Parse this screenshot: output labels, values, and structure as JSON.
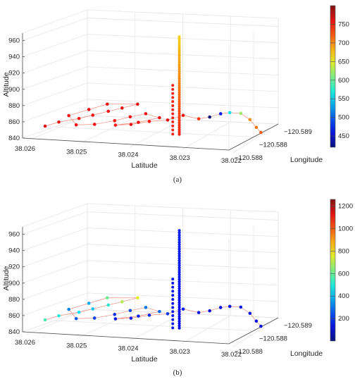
{
  "chart_data": [
    {
      "type": "scatter3d",
      "caption": "(a)",
      "xlabel": "Latitude",
      "ylabel": "Longitude",
      "zlabel": "Altitude",
      "x_ticks": [
        "38.026",
        "38.025",
        "38.024",
        "38.023",
        "38.022"
      ],
      "y_ticks": [
        "−120.589",
        "−120.588",
        "−120.588"
      ],
      "z_ticks": [
        "840",
        "860",
        "880",
        "900",
        "920",
        "940",
        "960"
      ],
      "colorbar_ticks": [
        "450",
        "500",
        "550",
        "600",
        "650",
        "700",
        "750"
      ],
      "colorbar_range": [
        420,
        800
      ],
      "zlim": [
        840,
        970
      ],
      "climb_column": {
        "lat": 38.023,
        "z_min": 848,
        "z_max": 968,
        "color_value_bottom": 745,
        "color_value_top": 670
      },
      "points": [
        {
          "lat": 38.0256,
          "lon_f": 0.0,
          "alt": 856,
          "c": 760
        },
        {
          "lat": 38.0253,
          "lon_f": 0.0,
          "alt": 862,
          "c": 760
        },
        {
          "lat": 38.0249,
          "lon_f": 0.05,
          "alt": 867,
          "c": 755
        },
        {
          "lat": 38.0246,
          "lon_f": 0.05,
          "alt": 872,
          "c": 755
        },
        {
          "lat": 38.0243,
          "lon_f": 0.1,
          "alt": 877,
          "c": 755
        },
        {
          "lat": 38.024,
          "lon_f": 0.1,
          "alt": 882,
          "c": 760
        },
        {
          "lat": 38.0237,
          "lon_f": 0.15,
          "alt": 887,
          "c": 760
        },
        {
          "lat": 38.0244,
          "lon_f": 0.2,
          "alt": 884,
          "c": 755
        },
        {
          "lat": 38.0248,
          "lon_f": 0.2,
          "alt": 876,
          "c": 755
        },
        {
          "lat": 38.0252,
          "lon_f": 0.15,
          "alt": 868,
          "c": 750
        },
        {
          "lat": 38.025,
          "lon_f": 0.1,
          "alt": 858,
          "c": 755
        },
        {
          "lat": 38.0246,
          "lon_f": 0.1,
          "alt": 860,
          "c": 755
        },
        {
          "lat": 38.0242,
          "lon_f": 0.15,
          "alt": 865,
          "c": 750
        },
        {
          "lat": 38.0239,
          "lon_f": 0.2,
          "alt": 870,
          "c": 755
        },
        {
          "lat": 38.0236,
          "lon_f": 0.25,
          "alt": 874,
          "c": 755
        },
        {
          "lat": 38.0233,
          "lon_f": 0.25,
          "alt": 870,
          "c": 760
        },
        {
          "lat": 38.0238,
          "lon_f": 0.3,
          "alt": 862,
          "c": 755
        },
        {
          "lat": 38.0243,
          "lon_f": 0.3,
          "alt": 857,
          "c": 750
        },
        {
          "lat": 38.024,
          "lon_f": 0.35,
          "alt": 858,
          "c": 755
        },
        {
          "lat": 38.0236,
          "lon_f": 0.35,
          "alt": 863,
          "c": 750
        },
        {
          "lat": 38.0232,
          "lon_f": 0.35,
          "alt": 866,
          "c": 760
        },
        {
          "lat": 38.0229,
          "lon_f": 0.4,
          "alt": 872,
          "c": 755
        },
        {
          "lat": 38.0226,
          "lon_f": 0.45,
          "alt": 868,
          "c": 740
        },
        {
          "lat": 38.0224,
          "lon_f": 0.5,
          "alt": 870,
          "c": 420
        },
        {
          "lat": 38.0222,
          "lon_f": 0.55,
          "alt": 874,
          "c": 470
        },
        {
          "lat": 38.022,
          "lon_f": 0.55,
          "alt": 876,
          "c": 560
        },
        {
          "lat": 38.0218,
          "lon_f": 0.6,
          "alt": 875,
          "c": 620
        },
        {
          "lat": 38.0216,
          "lon_f": 0.6,
          "alt": 868,
          "c": 700
        },
        {
          "lat": 38.0215,
          "lon_f": 0.65,
          "alt": 858,
          "c": 710
        },
        {
          "lat": 38.0214,
          "lon_f": 0.65,
          "alt": 852,
          "c": 720
        }
      ]
    },
    {
      "type": "scatter3d",
      "caption": "(b)",
      "xlabel": "Latitude",
      "ylabel": "Longitude",
      "zlabel": "Altitude",
      "x_ticks": [
        "38.026",
        "38.025",
        "38.024",
        "38.023",
        "38.022"
      ],
      "y_ticks": [
        "−120.589",
        "−120.588",
        "−120.588"
      ],
      "z_ticks": [
        "840",
        "860",
        "880",
        "900",
        "920",
        "940",
        "960"
      ],
      "colorbar_ticks": [
        "200",
        "400",
        "600",
        "800",
        "1000",
        "1200"
      ],
      "colorbar_range": [
        0,
        1260
      ],
      "zlim": [
        840,
        970
      ],
      "climb_column": {
        "lat": 38.023,
        "z_min": 848,
        "z_max": 968,
        "color_value_bottom": 150,
        "color_value_top": 180
      },
      "points": [
        {
          "lat": 38.0256,
          "lon_f": 0.0,
          "alt": 856,
          "c": 560
        },
        {
          "lat": 38.0253,
          "lon_f": 0.0,
          "alt": 862,
          "c": 500
        },
        {
          "lat": 38.0249,
          "lon_f": 0.05,
          "alt": 867,
          "c": 460
        },
        {
          "lat": 38.0246,
          "lon_f": 0.05,
          "alt": 872,
          "c": 420
        },
        {
          "lat": 38.0243,
          "lon_f": 0.1,
          "alt": 877,
          "c": 520
        },
        {
          "lat": 38.024,
          "lon_f": 0.1,
          "alt": 882,
          "c": 700
        },
        {
          "lat": 38.0237,
          "lon_f": 0.15,
          "alt": 887,
          "c": 760
        },
        {
          "lat": 38.0244,
          "lon_f": 0.2,
          "alt": 884,
          "c": 600
        },
        {
          "lat": 38.0248,
          "lon_f": 0.2,
          "alt": 876,
          "c": 380
        },
        {
          "lat": 38.0252,
          "lon_f": 0.15,
          "alt": 868,
          "c": 320
        },
        {
          "lat": 38.025,
          "lon_f": 0.1,
          "alt": 858,
          "c": 260
        },
        {
          "lat": 38.0246,
          "lon_f": 0.1,
          "alt": 860,
          "c": 220
        },
        {
          "lat": 38.0242,
          "lon_f": 0.15,
          "alt": 865,
          "c": 200
        },
        {
          "lat": 38.0239,
          "lon_f": 0.2,
          "alt": 870,
          "c": 240
        },
        {
          "lat": 38.0236,
          "lon_f": 0.25,
          "alt": 874,
          "c": 300
        },
        {
          "lat": 38.0233,
          "lon_f": 0.25,
          "alt": 870,
          "c": 280
        },
        {
          "lat": 38.0238,
          "lon_f": 0.3,
          "alt": 862,
          "c": 180
        },
        {
          "lat": 38.0243,
          "lon_f": 0.3,
          "alt": 857,
          "c": 160
        },
        {
          "lat": 38.024,
          "lon_f": 0.35,
          "alt": 858,
          "c": 170
        },
        {
          "lat": 38.0236,
          "lon_f": 0.35,
          "alt": 863,
          "c": 190
        },
        {
          "lat": 38.0232,
          "lon_f": 0.35,
          "alt": 866,
          "c": 210
        },
        {
          "lat": 38.0229,
          "lon_f": 0.4,
          "alt": 872,
          "c": 180
        },
        {
          "lat": 38.0226,
          "lon_f": 0.45,
          "alt": 868,
          "c": 150
        },
        {
          "lat": 38.0224,
          "lon_f": 0.5,
          "alt": 870,
          "c": 140
        },
        {
          "lat": 38.0222,
          "lon_f": 0.55,
          "alt": 874,
          "c": 160
        },
        {
          "lat": 38.022,
          "lon_f": 0.55,
          "alt": 876,
          "c": 150
        },
        {
          "lat": 38.0218,
          "lon_f": 0.6,
          "alt": 875,
          "c": 170
        },
        {
          "lat": 38.0216,
          "lon_f": 0.6,
          "alt": 868,
          "c": 160
        },
        {
          "lat": 38.0215,
          "lon_f": 0.65,
          "alt": 858,
          "c": 150
        },
        {
          "lat": 38.0214,
          "lon_f": 0.65,
          "alt": 852,
          "c": 140
        }
      ]
    }
  ]
}
